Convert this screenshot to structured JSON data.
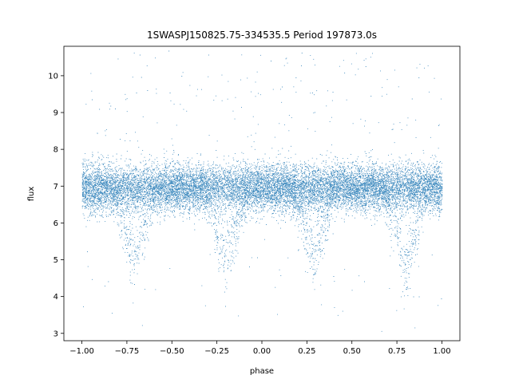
{
  "chart_data": {
    "type": "scatter",
    "title": "1SWASPJ150825.75-334535.5 Period 197873.0s",
    "xlabel": "phase",
    "ylabel": "flux",
    "xlim": [
      -1.1,
      1.1
    ],
    "ylim": [
      2.8,
      10.8
    ],
    "xticks": [
      -1.0,
      -0.75,
      -0.5,
      -0.25,
      0.0,
      0.25,
      0.5,
      0.75,
      1.0
    ],
    "xtick_labels": [
      "−1.00",
      "−0.75",
      "−0.50",
      "−0.25",
      "0.00",
      "0.25",
      "0.50",
      "0.75",
      "1.00"
    ],
    "yticks": [
      3,
      4,
      5,
      6,
      7,
      8,
      9,
      10
    ],
    "ytick_labels": [
      "3",
      "4",
      "5",
      "6",
      "7",
      "8",
      "9",
      "10"
    ],
    "grid": false,
    "legend": "none",
    "series": [
      {
        "marker_color": "#1f77b4",
        "baseline_flux": 6.95,
        "phase_range": [
          -1.0,
          1.0
        ],
        "eclipse_dips": [
          {
            "phase": -0.71,
            "depth_flux": 4.7
          },
          {
            "phase": -0.2,
            "depth_flux": 4.5
          },
          {
            "phase": 0.29,
            "depth_flux": 4.7
          },
          {
            "phase": 0.8,
            "depth_flux": 4.5
          }
        ]
      }
    ]
  }
}
